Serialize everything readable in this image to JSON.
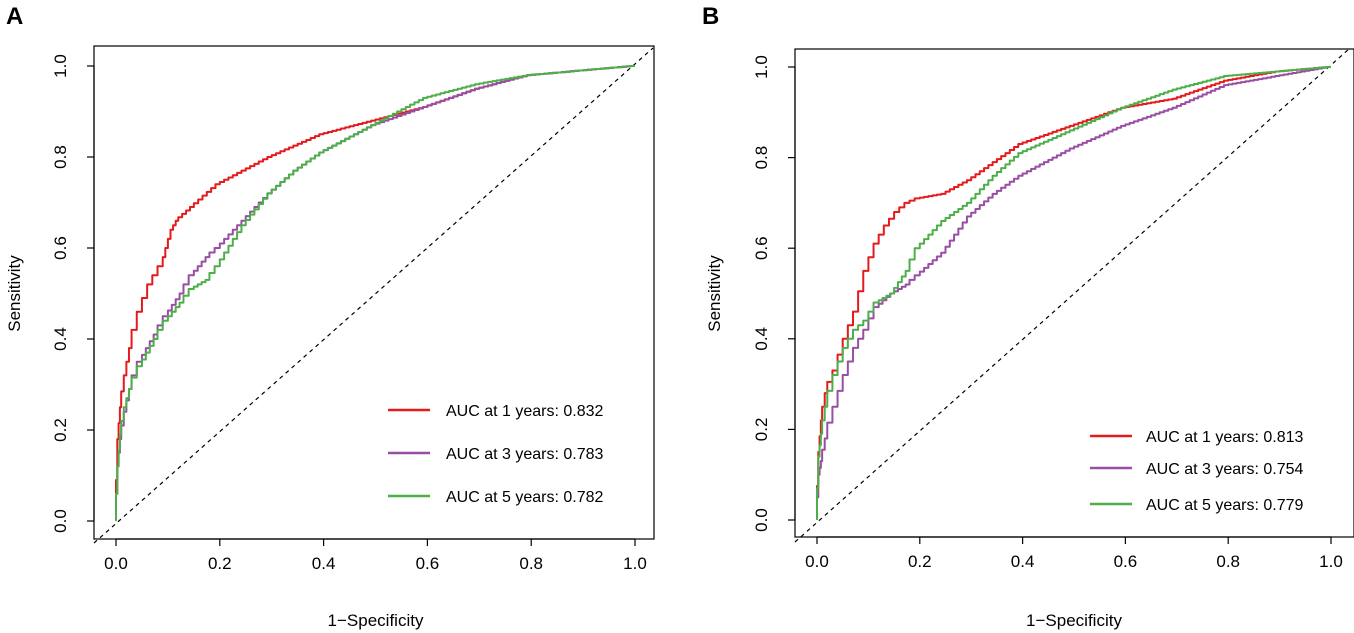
{
  "chart_data": [
    {
      "panel": "A",
      "type": "line",
      "title": "",
      "xlabel": "1−Specificity",
      "ylabel": "Sensitivity",
      "xlim": [
        0,
        1
      ],
      "ylim": [
        0,
        1
      ],
      "xticks": [
        "0.0",
        "0.2",
        "0.4",
        "0.6",
        "0.8",
        "1.0"
      ],
      "yticks": [
        "0.0",
        "0.2",
        "0.4",
        "0.6",
        "0.8",
        "1.0"
      ],
      "legend_position": "bottom-right",
      "reference_line": {
        "x": [
          0,
          1
        ],
        "y": [
          0,
          1
        ],
        "style": "dashed"
      },
      "series": [
        {
          "name": "AUC at 1 years: 0.832",
          "color": "#e41a1c",
          "x": [
            0,
            0.005,
            0.01,
            0.02,
            0.03,
            0.05,
            0.07,
            0.09,
            0.1,
            0.11,
            0.12,
            0.15,
            0.2,
            0.25,
            0.3,
            0.4,
            0.5,
            0.6,
            0.7,
            0.8,
            0.9,
            1.0
          ],
          "y": [
            0,
            0.18,
            0.25,
            0.32,
            0.38,
            0.46,
            0.52,
            0.56,
            0.6,
            0.64,
            0.66,
            0.69,
            0.74,
            0.77,
            0.8,
            0.85,
            0.88,
            0.91,
            0.95,
            0.98,
            0.99,
            1.0
          ]
        },
        {
          "name": "AUC at 3 years: 0.783",
          "color": "#984ea3",
          "x": [
            0,
            0.005,
            0.01,
            0.02,
            0.03,
            0.05,
            0.08,
            0.1,
            0.13,
            0.15,
            0.18,
            0.2,
            0.25,
            0.3,
            0.35,
            0.4,
            0.5,
            0.6,
            0.7,
            0.8,
            0.9,
            1.0
          ],
          "y": [
            0,
            0.12,
            0.18,
            0.24,
            0.29,
            0.35,
            0.41,
            0.45,
            0.5,
            0.54,
            0.58,
            0.6,
            0.66,
            0.72,
            0.77,
            0.81,
            0.87,
            0.91,
            0.95,
            0.98,
            0.99,
            1.0
          ]
        },
        {
          "name": "AUC at 5 years: 0.782",
          "color": "#4daf4a",
          "x": [
            0,
            0.005,
            0.01,
            0.02,
            0.03,
            0.05,
            0.08,
            0.1,
            0.13,
            0.15,
            0.18,
            0.2,
            0.25,
            0.3,
            0.35,
            0.4,
            0.5,
            0.6,
            0.7,
            0.8,
            0.9,
            1.0
          ],
          "y": [
            0,
            0.12,
            0.19,
            0.25,
            0.29,
            0.34,
            0.4,
            0.44,
            0.48,
            0.51,
            0.53,
            0.56,
            0.65,
            0.72,
            0.77,
            0.81,
            0.87,
            0.93,
            0.96,
            0.98,
            0.99,
            1.0
          ]
        }
      ]
    },
    {
      "panel": "B",
      "type": "line",
      "title": "",
      "xlabel": "1−Specificity",
      "ylabel": "Sensitivity",
      "xlim": [
        0,
        1
      ],
      "ylim": [
        0,
        1
      ],
      "xticks": [
        "0.0",
        "0.2",
        "0.4",
        "0.6",
        "0.8",
        "1.0"
      ],
      "yticks": [
        "0.0",
        "0.2",
        "0.4",
        "0.6",
        "0.8",
        "1.0"
      ],
      "legend_position": "bottom-right",
      "reference_line": {
        "x": [
          0,
          1
        ],
        "y": [
          0,
          1
        ],
        "style": "dashed"
      },
      "series": [
        {
          "name": "AUC at 1 years: 0.813",
          "color": "#e41a1c",
          "x": [
            0,
            0.005,
            0.01,
            0.02,
            0.04,
            0.06,
            0.08,
            0.1,
            0.12,
            0.14,
            0.16,
            0.18,
            0.2,
            0.25,
            0.3,
            0.35,
            0.4,
            0.5,
            0.6,
            0.7,
            0.8,
            0.9,
            1.0
          ],
          "y": [
            0,
            0.15,
            0.22,
            0.28,
            0.33,
            0.4,
            0.46,
            0.55,
            0.61,
            0.65,
            0.68,
            0.7,
            0.71,
            0.72,
            0.75,
            0.79,
            0.83,
            0.87,
            0.91,
            0.93,
            0.97,
            0.99,
            1.0
          ]
        },
        {
          "name": "AUC at 3 years: 0.754",
          "color": "#984ea3",
          "x": [
            0,
            0.005,
            0.01,
            0.02,
            0.04,
            0.06,
            0.08,
            0.1,
            0.12,
            0.15,
            0.18,
            0.2,
            0.25,
            0.3,
            0.35,
            0.4,
            0.5,
            0.6,
            0.7,
            0.8,
            0.9,
            1.0
          ],
          "y": [
            0,
            0.1,
            0.13,
            0.18,
            0.25,
            0.32,
            0.38,
            0.42,
            0.47,
            0.5,
            0.52,
            0.54,
            0.59,
            0.67,
            0.72,
            0.76,
            0.82,
            0.87,
            0.91,
            0.96,
            0.98,
            1.0
          ]
        },
        {
          "name": "AUC at 5 years: 0.779",
          "color": "#4daf4a",
          "x": [
            0,
            0.005,
            0.01,
            0.02,
            0.04,
            0.06,
            0.08,
            0.1,
            0.12,
            0.15,
            0.18,
            0.2,
            0.25,
            0.3,
            0.35,
            0.4,
            0.5,
            0.6,
            0.7,
            0.8,
            0.9,
            1.0
          ],
          "y": [
            0,
            0.14,
            0.19,
            0.25,
            0.32,
            0.38,
            0.42,
            0.44,
            0.48,
            0.5,
            0.55,
            0.6,
            0.66,
            0.7,
            0.76,
            0.81,
            0.86,
            0.91,
            0.95,
            0.98,
            0.99,
            1.0
          ]
        }
      ]
    }
  ]
}
